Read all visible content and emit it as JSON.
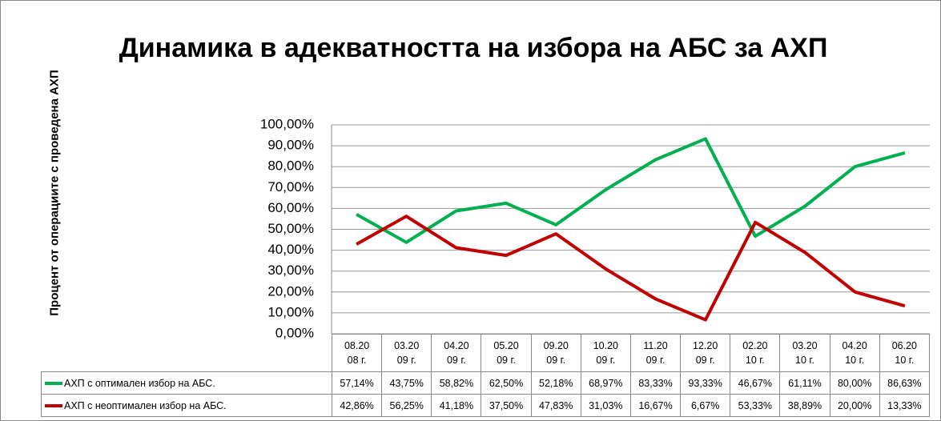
{
  "chart_data": {
    "type": "line",
    "title": "Динамика в адекватността на избора на АБС за АХП",
    "y_label": "Процент от операциите с проведена АХП",
    "categories": [
      "08.2008 г.",
      "03.2009 г.",
      "04.2009 г.",
      "05.2009 г.",
      "09.2009 г.",
      "10.2009 г.",
      "11.2009 г.",
      "12.2009 г.",
      "02.2010 г.",
      "03.2010 г.",
      "04.2010 г.",
      "06.2010 г."
    ],
    "series": [
      {
        "name": "АХП с оптимален избор на АБС.",
        "color": "#00b050",
        "values": [
          57.14,
          43.75,
          58.82,
          62.5,
          52.18,
          68.97,
          83.33,
          93.33,
          46.67,
          61.11,
          80.0,
          86.63
        ],
        "value_labels": [
          "57,14%",
          "43,75%",
          "58,82%",
          "62,50%",
          "52,18%",
          "68,97%",
          "83,33%",
          "93,33%",
          "46,67%",
          "61,11%",
          "80,00%",
          "86,63%"
        ]
      },
      {
        "name": "АХП с неоптимален избор на АБС.",
        "color": "#c00000",
        "values": [
          42.86,
          56.25,
          41.18,
          37.5,
          47.83,
          31.03,
          16.67,
          6.67,
          53.33,
          38.89,
          20.0,
          13.33
        ],
        "value_labels": [
          "42,86%",
          "56,25%",
          "41,18%",
          "37,50%",
          "47,83%",
          "31,03%",
          "16,67%",
          "6,67%",
          "53,33%",
          "38,89%",
          "20,00%",
          "13,33%"
        ]
      }
    ],
    "ylim": [
      0,
      100
    ],
    "yticks": [
      {
        "value": 0,
        "label": "0,00%"
      },
      {
        "value": 10,
        "label": "10,00%"
      },
      {
        "value": 20,
        "label": "20,00%"
      },
      {
        "value": 30,
        "label": "30,00%"
      },
      {
        "value": 40,
        "label": "40,00%"
      },
      {
        "value": 50,
        "label": "50,00%"
      },
      {
        "value": 60,
        "label": "60,00%"
      },
      {
        "value": 70,
        "label": "70,00%"
      },
      {
        "value": 80,
        "label": "80,00%"
      },
      {
        "value": 90,
        "label": "90,00%"
      },
      {
        "value": 100,
        "label": "100,00%"
      }
    ],
    "grid": true,
    "data_table": true
  }
}
